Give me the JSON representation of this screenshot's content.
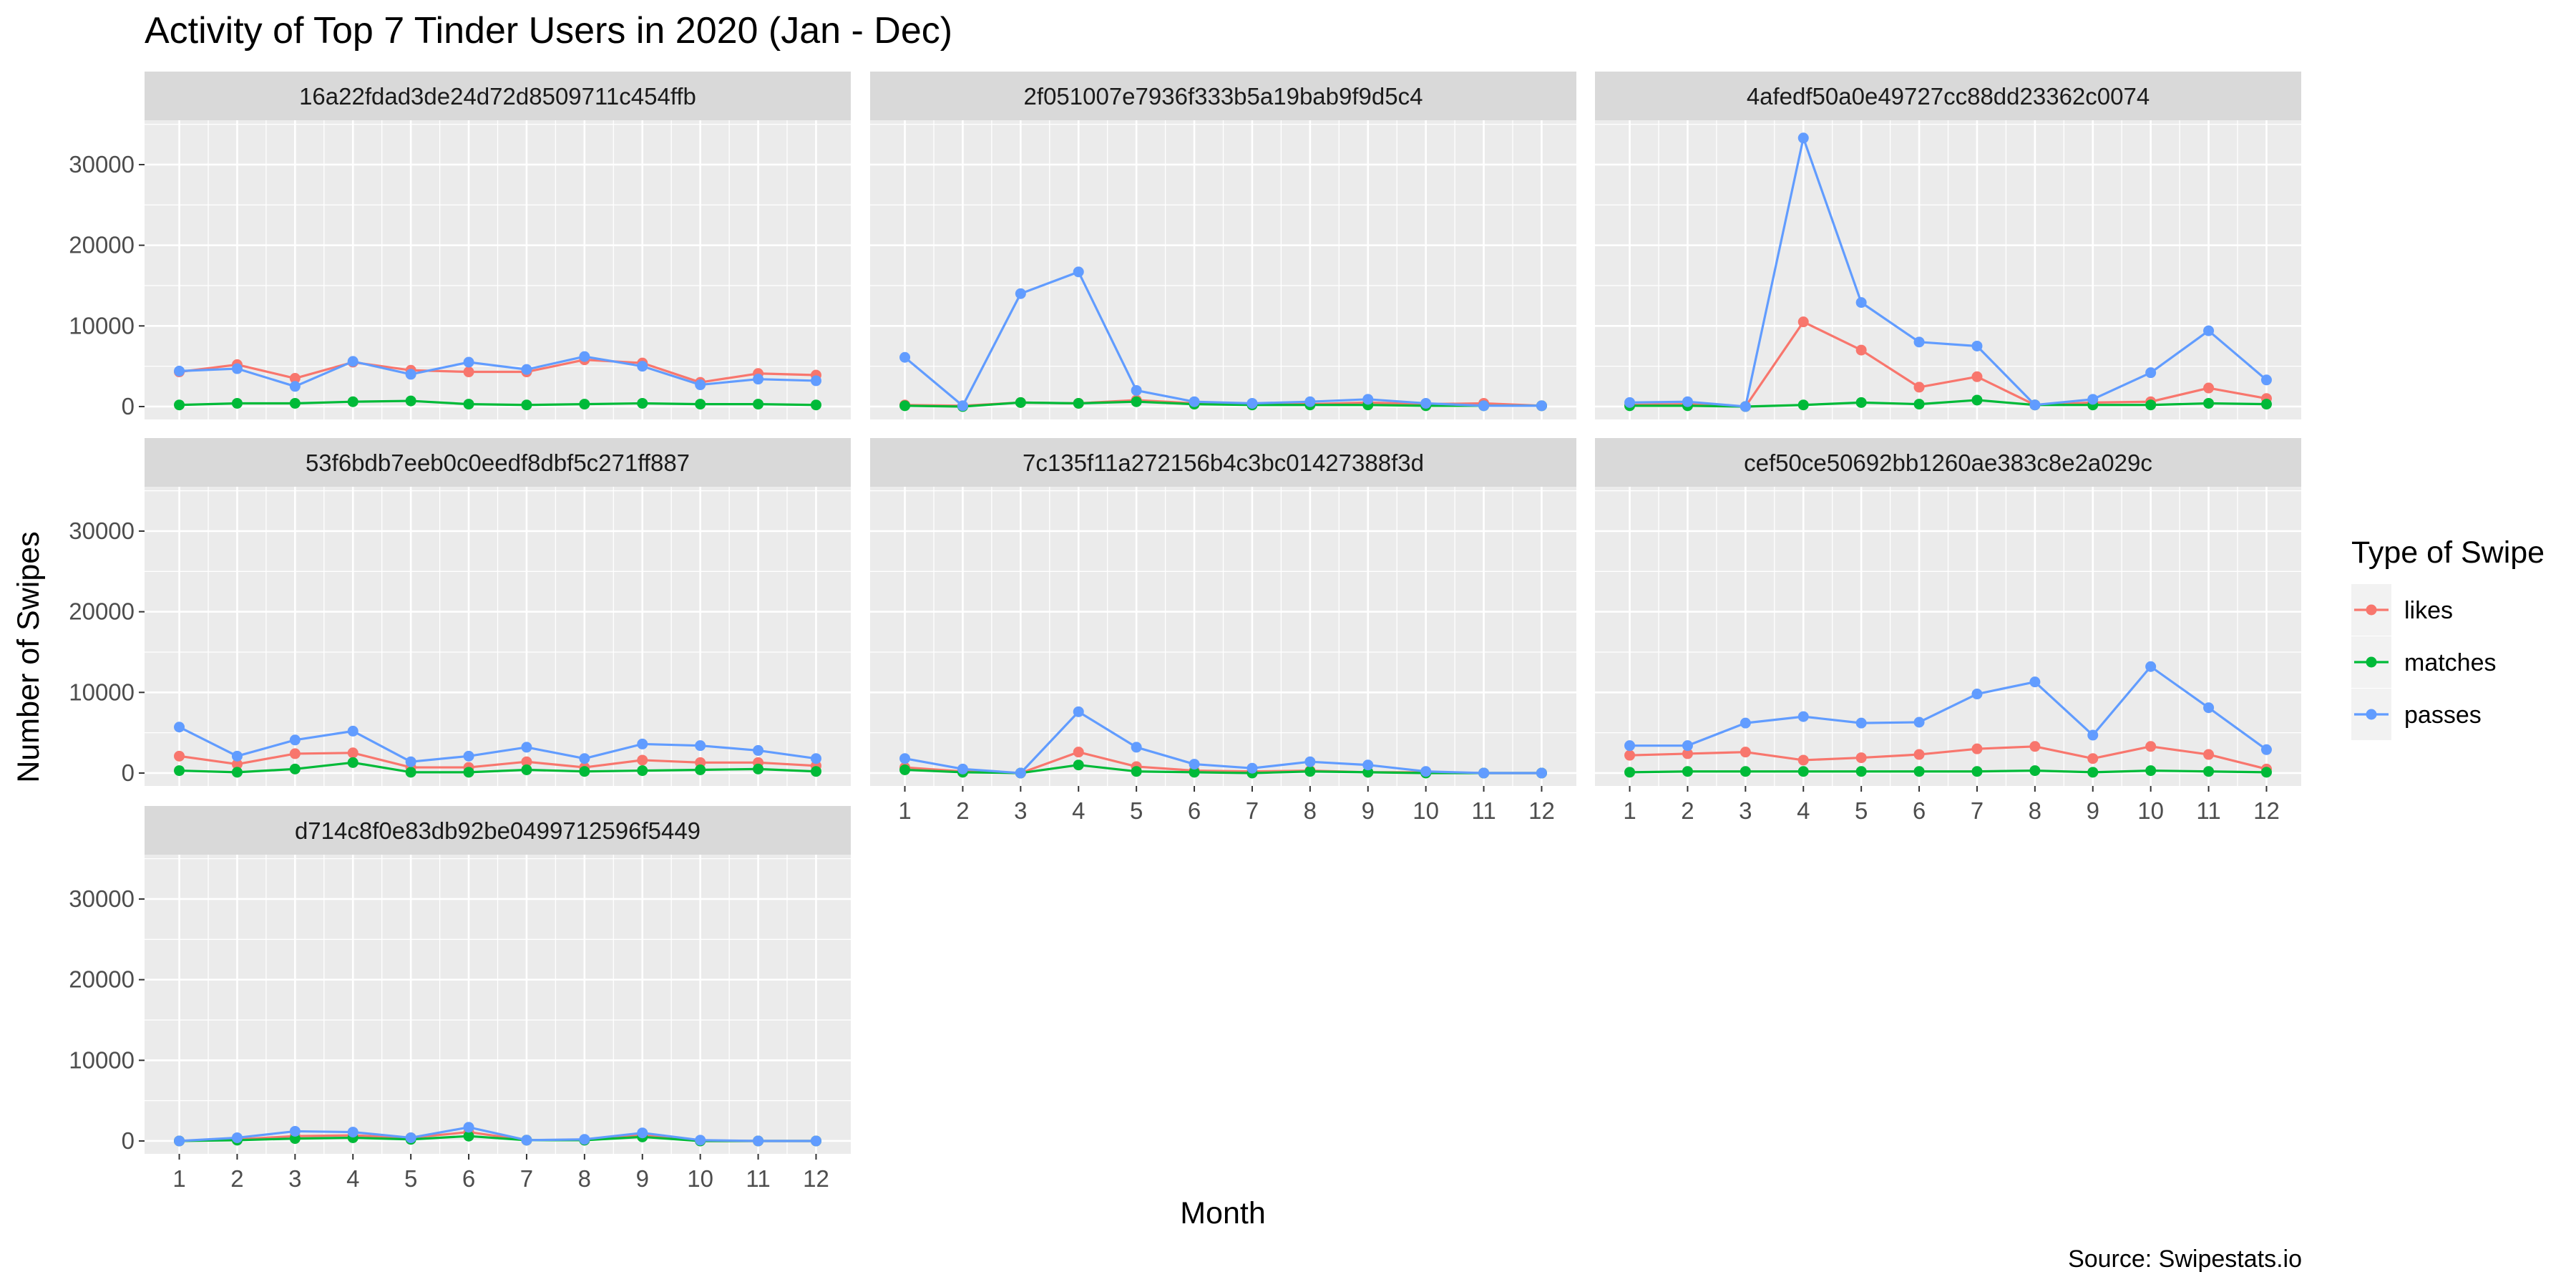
{
  "chart_data": {
    "type": "line",
    "title": "Activity of Top 7 Tinder Users in 2020 (Jan - Dec)",
    "xlabel": "Month",
    "ylabel": "Number of Swipes",
    "caption": "Source: Swipestats.io",
    "x": [
      1,
      2,
      3,
      4,
      5,
      6,
      7,
      8,
      9,
      10,
      11,
      12
    ],
    "x_ticks": [
      "1",
      "2",
      "3",
      "4",
      "5",
      "6",
      "7",
      "8",
      "9",
      "10",
      "11",
      "12"
    ],
    "ylim": [
      -1600,
      35500
    ],
    "y_ticks": [
      0,
      10000,
      20000,
      30000
    ],
    "y_tick_labels": [
      "0",
      "10000",
      "20000",
      "30000"
    ],
    "grid": true,
    "legend": {
      "title": "Type of Swipe",
      "position": "right",
      "entries": [
        {
          "label": "likes",
          "color": "#F8766D"
        },
        {
          "label": "matches",
          "color": "#00BA38"
        },
        {
          "label": "passes",
          "color": "#619CFF"
        }
      ]
    },
    "panels": [
      {
        "name": "16a22fdad3de24d72d8509711c454ffb",
        "series": [
          {
            "name": "likes",
            "values": [
              4300,
              5200,
              3500,
              5500,
              4500,
              4300,
              4300,
              5800,
              5400,
              3000,
              4100,
              3900
            ]
          },
          {
            "name": "matches",
            "values": [
              200,
              400,
              400,
              600,
              700,
              300,
              200,
              300,
              400,
              300,
              300,
              200
            ]
          },
          {
            "name": "passes",
            "values": [
              4400,
              4700,
              2500,
              5600,
              4000,
              5500,
              4600,
              6200,
              5000,
              2700,
              3400,
              3200
            ]
          }
        ]
      },
      {
        "name": "2f051007e7936f333b5a19bab9f9d5c4",
        "series": [
          {
            "name": "likes",
            "values": [
              200,
              100,
              500,
              400,
              800,
              400,
              300,
              300,
              500,
              300,
              400,
              100
            ]
          },
          {
            "name": "matches",
            "values": [
              100,
              0,
              500,
              400,
              600,
              300,
              200,
              200,
              200,
              100,
              100,
              100
            ]
          },
          {
            "name": "passes",
            "values": [
              6100,
              100,
              14000,
              16700,
              2000,
              600,
              400,
              600,
              900,
              400,
              100,
              100
            ]
          }
        ]
      },
      {
        "name": "4afedf50a0e49727cc88dd23362c0074",
        "series": [
          {
            "name": "likes",
            "values": [
              200,
              300,
              0,
              10500,
              7000,
              2400,
              3700,
              200,
              500,
              600,
              2300,
              1000
            ]
          },
          {
            "name": "matches",
            "values": [
              100,
              100,
              0,
              200,
              500,
              300,
              800,
              200,
              200,
              200,
              400,
              300
            ]
          },
          {
            "name": "passes",
            "values": [
              500,
              600,
              0,
              33300,
              12900,
              8000,
              7500,
              200,
              900,
              4200,
              9400,
              3300
            ]
          }
        ]
      },
      {
        "name": "53f6bdb7eeb0c0eedf8dbf5c271ff887",
        "series": [
          {
            "name": "likes",
            "values": [
              2100,
              1100,
              2400,
              2500,
              700,
              700,
              1400,
              700,
              1600,
              1300,
              1300,
              900
            ]
          },
          {
            "name": "matches",
            "values": [
              300,
              100,
              500,
              1300,
              100,
              100,
              400,
              200,
              300,
              400,
              500,
              200
            ]
          },
          {
            "name": "passes",
            "values": [
              5700,
              2100,
              4100,
              5200,
              1400,
              2100,
              3200,
              1800,
              3600,
              3400,
              2800,
              1800
            ]
          }
        ]
      },
      {
        "name": "7c135f11a272156b4c3bc01427388f3d",
        "series": [
          {
            "name": "likes",
            "values": [
              700,
              200,
              0,
              2600,
              800,
              300,
              200,
              300,
              100,
              100,
              0,
              0
            ]
          },
          {
            "name": "matches",
            "values": [
              400,
              100,
              0,
              1000,
              200,
              100,
              0,
              200,
              100,
              0,
              0,
              0
            ]
          },
          {
            "name": "passes",
            "values": [
              1800,
              500,
              0,
              7600,
              3200,
              1100,
              600,
              1400,
              1000,
              200,
              0,
              0
            ]
          }
        ]
      },
      {
        "name": "cef50ce50692bb1260ae383c8e2a029c",
        "series": [
          {
            "name": "likes",
            "values": [
              2200,
              2400,
              2600,
              1600,
              1900,
              2300,
              3000,
              3300,
              1800,
              3300,
              2300,
              500
            ]
          },
          {
            "name": "matches",
            "values": [
              100,
              200,
              200,
              200,
              200,
              200,
              200,
              300,
              100,
              300,
              200,
              100
            ]
          },
          {
            "name": "passes",
            "values": [
              3400,
              3400,
              6200,
              7000,
              6200,
              6300,
              9800,
              11300,
              4700,
              13200,
              8100,
              2900
            ]
          }
        ]
      },
      {
        "name": "d714c8f0e83db92be0499712596f5449",
        "series": [
          {
            "name": "likes",
            "values": [
              0,
              200,
              600,
              700,
              400,
              1100,
              100,
              100,
              800,
              0,
              0,
              0
            ]
          },
          {
            "name": "matches",
            "values": [
              0,
              100,
              300,
              400,
              200,
              600,
              100,
              100,
              500,
              0,
              0,
              0
            ]
          },
          {
            "name": "passes",
            "values": [
              0,
              400,
              1200,
              1100,
              400,
              1700,
              100,
              200,
              1000,
              100,
              0,
              0
            ]
          }
        ]
      }
    ]
  }
}
